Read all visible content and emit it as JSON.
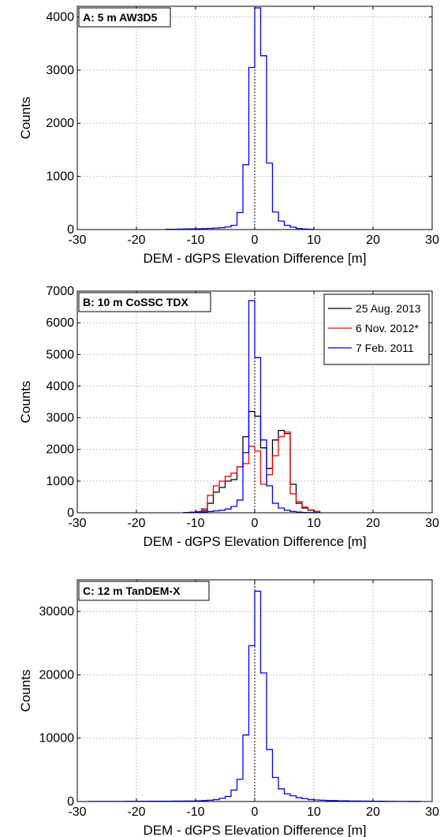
{
  "chart_data": [
    {
      "type": "histogram",
      "panel_label": "A: 5 m AW3D5",
      "xlabel": "DEM - dGPS Elevation Difference [m]",
      "ylabel": "Counts",
      "xlim": [
        -30,
        30
      ],
      "ylim": [
        0,
        4200
      ],
      "xticks": [
        -30,
        -20,
        -10,
        0,
        10,
        20,
        30
      ],
      "yticks": [
        0,
        1000,
        2000,
        3000,
        4000
      ],
      "grid": true,
      "bin_edges": [
        -15,
        -14,
        -13,
        -12,
        -11,
        -10,
        -9,
        -8,
        -7,
        -6,
        -5,
        -4,
        -3,
        -2,
        -1,
        0,
        1,
        2,
        3,
        4,
        5,
        6,
        7,
        8,
        9,
        10
      ],
      "series": [
        {
          "color": "#0000ff",
          "counts": [
            5,
            5,
            8,
            10,
            12,
            15,
            18,
            22,
            28,
            35,
            50,
            80,
            320,
            1220,
            3050,
            4170,
            3270,
            1250,
            330,
            160,
            80,
            45,
            20,
            10,
            5
          ]
        }
      ]
    },
    {
      "type": "histogram",
      "panel_label": "B: 10 m CoSSC TDX",
      "xlabel": "DEM - dGPS Elevation Difference [m]",
      "ylabel": "Counts",
      "xlim": [
        -30,
        30
      ],
      "ylim": [
        0,
        7000
      ],
      "xticks": [
        -30,
        -20,
        -10,
        0,
        10,
        20,
        30
      ],
      "yticks": [
        0,
        1000,
        2000,
        3000,
        4000,
        5000,
        6000,
        7000
      ],
      "grid": true,
      "legend_position": "top-right",
      "bin_edges": [
        -12,
        -11,
        -10,
        -9,
        -8,
        -7,
        -6,
        -5,
        -4,
        -3,
        -2,
        -1,
        0,
        1,
        2,
        3,
        4,
        5,
        6,
        7,
        8,
        9,
        10,
        11
      ],
      "series": [
        {
          "name": "25 Aug. 2013",
          "color": "#000000",
          "counts": [
            10,
            20,
            30,
            80,
            300,
            650,
            800,
            1000,
            1050,
            1450,
            2400,
            3200,
            3050,
            2050,
            1400,
            2300,
            2600,
            2500,
            900,
            300,
            150,
            80,
            40
          ]
        },
        {
          "name": "6 Nov. 2012*",
          "color": "#ff0000",
          "counts": [
            10,
            20,
            40,
            130,
            550,
            850,
            1000,
            1150,
            1250,
            1450,
            1550,
            2100,
            1950,
            900,
            1200,
            1800,
            2400,
            2550,
            600,
            350,
            180,
            90,
            40
          ]
        },
        {
          "name": "7 Feb. 2011",
          "color": "#0000ff",
          "counts": [
            5,
            10,
            20,
            30,
            40,
            60,
            80,
            120,
            200,
            400,
            1900,
            6700,
            4900,
            2300,
            850,
            300,
            150,
            80,
            40,
            20,
            10,
            5,
            5
          ]
        }
      ]
    },
    {
      "type": "histogram",
      "panel_label": "C: 12 m TanDEM-X",
      "xlabel": "DEM - dGPS Elevation Difference [m]",
      "ylabel": "Counts",
      "xlim": [
        -30,
        30
      ],
      "ylim": [
        0,
        35000
      ],
      "xticks": [
        -30,
        -20,
        -10,
        0,
        10,
        20,
        30
      ],
      "yticks": [
        0,
        10000,
        20000,
        30000
      ],
      "grid": true,
      "bin_edges": [
        -28,
        -26,
        -24,
        -22,
        -20,
        -18,
        -16,
        -14,
        -12,
        -10,
        -9,
        -8,
        -7,
        -6,
        -5,
        -4,
        -3,
        -2,
        -1,
        0,
        1,
        2,
        3,
        4,
        5,
        6,
        7,
        8,
        9,
        10,
        11,
        12,
        14,
        16,
        18,
        20,
        22,
        24,
        26,
        28
      ],
      "series": [
        {
          "color": "#0000ff",
          "counts": [
            20,
            20,
            20,
            30,
            30,
            40,
            50,
            60,
            80,
            100,
            150,
            200,
            300,
            500,
            800,
            1800,
            3500,
            10500,
            24600,
            33200,
            20300,
            8200,
            3800,
            2000,
            1200,
            900,
            600,
            450,
            300,
            250,
            200,
            150,
            100,
            80,
            60,
            40,
            30,
            20,
            10
          ]
        }
      ]
    }
  ]
}
